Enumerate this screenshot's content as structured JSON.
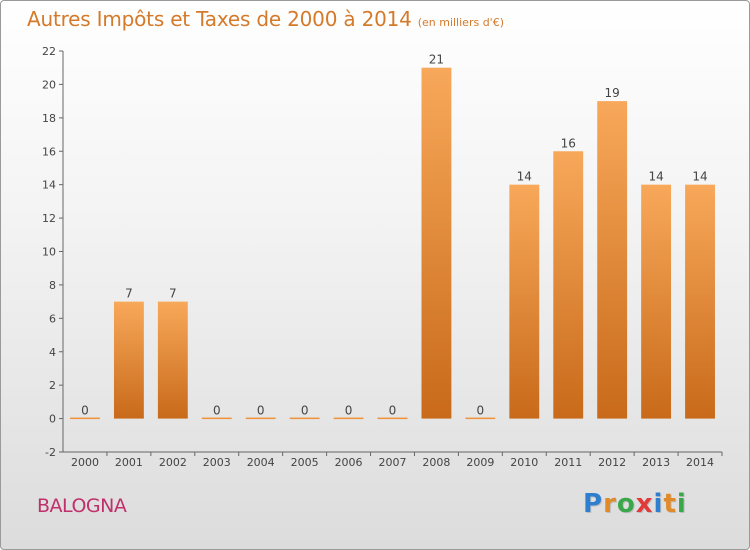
{
  "header": {
    "title": "Autres Impôts et Taxes de 2000 à 2014",
    "unit": "(en milliers d'€)"
  },
  "footer": {
    "commune": "BALOGNA",
    "logo_letters": [
      "P",
      "r",
      "o",
      "x",
      "i",
      "t",
      "i"
    ],
    "logo_colors": [
      "#2f7fd0",
      "#e08a2a",
      "#3aa84a",
      "#e23a3a",
      "#2f7fd0",
      "#e08a2a",
      "#3aa84a"
    ]
  },
  "chart_data": {
    "type": "bar",
    "categories": [
      "2000",
      "2001",
      "2002",
      "2003",
      "2004",
      "2005",
      "2006",
      "2007",
      "2008",
      "2009",
      "2010",
      "2011",
      "2012",
      "2013",
      "2014"
    ],
    "values": [
      0,
      7,
      7,
      0,
      0,
      0,
      0,
      0,
      21,
      0,
      14,
      16,
      19,
      14,
      14
    ],
    "data_labels": [
      "0",
      "7",
      "7",
      "0",
      "0",
      "0",
      "0",
      "0",
      "21",
      "0",
      "14",
      "16",
      "19",
      "14",
      "14"
    ],
    "yticks": [
      -2,
      0,
      2,
      4,
      6,
      8,
      10,
      12,
      14,
      16,
      18,
      20,
      22
    ],
    "ylim": [
      -2,
      22
    ],
    "grid": false,
    "bar_color": "#f0923a",
    "bar_color_light": "#f8a85a",
    "bar_color_dark": "#c86a1a",
    "title": "Autres Impôts et Taxes de 2000 à 2014",
    "xlabel": "",
    "ylabel": ""
  }
}
